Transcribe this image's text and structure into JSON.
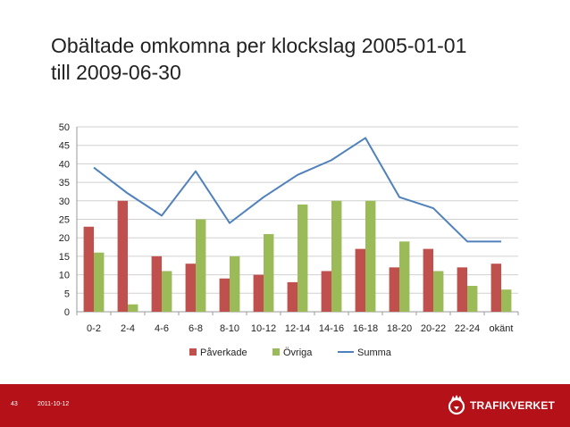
{
  "slide": {
    "title_line1": "Obältade omkomna per klockslag 2005-01-01",
    "title_line2": "till 2009-06-30",
    "slide_number": "43",
    "date": "2011-10-12",
    "brand": "TRAFIKVERKET"
  },
  "colors": {
    "paverkade": "#c0504d",
    "ovriga": "#9bbb59",
    "summa": "#4f81bd",
    "footer": "#b41218"
  },
  "chart_data": {
    "type": "bar",
    "title": "",
    "xlabel": "",
    "ylabel": "",
    "ylim": [
      0,
      50
    ],
    "yticks": [
      0,
      5,
      10,
      15,
      20,
      25,
      30,
      35,
      40,
      45,
      50
    ],
    "categories": [
      "0-2",
      "2-4",
      "4-6",
      "6-8",
      "8-10",
      "10-12",
      "12-14",
      "14-16",
      "16-18",
      "18-20",
      "20-22",
      "22-24",
      "okänt"
    ],
    "series": [
      {
        "name": "Påverkade",
        "type": "bar",
        "values": [
          23,
          30,
          15,
          13,
          9,
          10,
          8,
          11,
          17,
          12,
          17,
          12,
          13
        ]
      },
      {
        "name": "Övriga",
        "type": "bar",
        "values": [
          16,
          2,
          11,
          25,
          15,
          21,
          29,
          30,
          30,
          19,
          11,
          7,
          6
        ]
      },
      {
        "name": "Summa",
        "type": "line",
        "values": [
          39,
          32,
          26,
          38,
          24,
          31,
          37,
          41,
          47,
          31,
          28,
          19,
          19
        ]
      }
    ],
    "legend_position": "bottom",
    "grid": true
  }
}
